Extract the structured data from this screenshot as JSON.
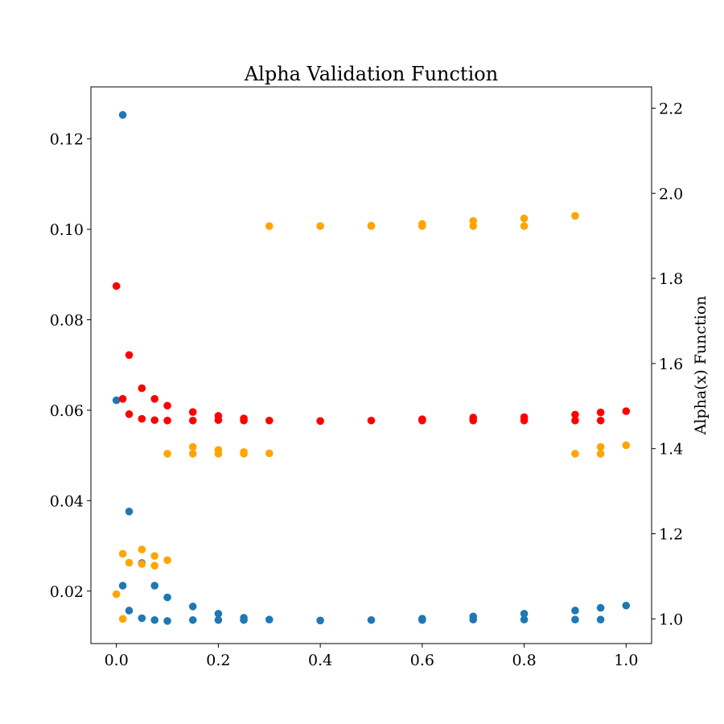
{
  "chart_data": {
    "type": "scatter",
    "title": "Alpha Validation Function",
    "xlabel": "",
    "ylabel_left": "",
    "ylabel_right": "Alpha(x) Function",
    "xlim": [
      -0.05,
      1.05
    ],
    "ylim_left": [
      0.0084,
      0.1315
    ],
    "ylim_right": [
      0.942,
      2.25
    ],
    "x_ticks": [
      0.0,
      0.2,
      0.4,
      0.6,
      0.8,
      1.0
    ],
    "x_tick_labels": [
      "0.0",
      "0.2",
      "0.4",
      "0.6",
      "0.8",
      "1.0"
    ],
    "y_left_ticks": [
      0.02,
      0.04,
      0.06,
      0.08,
      0.1,
      0.12
    ],
    "y_left_tick_labels": [
      "0.02",
      "0.04",
      "0.06",
      "0.08",
      "0.10",
      "0.12"
    ],
    "y_right_ticks": [
      1.0,
      1.2,
      1.4,
      1.6,
      1.8,
      2.0,
      2.2
    ],
    "y_right_tick_labels": [
      "1.0",
      "1.2",
      "1.4",
      "1.6",
      "1.8",
      "2.0",
      "2.2"
    ],
    "grid": false,
    "legend": "none",
    "series": [
      {
        "color": "#1f77b4",
        "axis": "left",
        "points": [
          [
            0.0,
            0.0622
          ],
          [
            0.0125,
            0.1253
          ],
          [
            0.0125,
            0.0212
          ],
          [
            0.025,
            0.0376
          ],
          [
            0.025,
            0.0157
          ],
          [
            0.05,
            0.0262
          ],
          [
            0.05,
            0.014
          ],
          [
            0.075,
            0.0212
          ],
          [
            0.075,
            0.0136
          ],
          [
            0.1,
            0.0186
          ],
          [
            0.1,
            0.0134
          ],
          [
            0.15,
            0.0166
          ],
          [
            0.15,
            0.0136
          ],
          [
            0.2,
            0.015
          ],
          [
            0.2,
            0.0136
          ],
          [
            0.25,
            0.0141
          ],
          [
            0.25,
            0.0136
          ],
          [
            0.3,
            0.0137
          ],
          [
            0.4,
            0.0135
          ],
          [
            0.5,
            0.0136
          ],
          [
            0.6,
            0.0139
          ],
          [
            0.6,
            0.0136
          ],
          [
            0.7,
            0.0144
          ],
          [
            0.7,
            0.0137
          ],
          [
            0.8,
            0.015
          ],
          [
            0.8,
            0.0137
          ],
          [
            0.9,
            0.0157
          ],
          [
            0.9,
            0.0137
          ],
          [
            0.95,
            0.0163
          ],
          [
            0.95,
            0.0137
          ],
          [
            1.0,
            0.0168
          ]
        ]
      },
      {
        "color": "#ffa500",
        "axis": "right",
        "points": [
          [
            0.0,
            1.058
          ],
          [
            0.0125,
            1.153
          ],
          [
            0.0125,
            1.0
          ],
          [
            0.025,
            1.132
          ],
          [
            0.05,
            1.163
          ],
          [
            0.05,
            1.129
          ],
          [
            0.075,
            1.148
          ],
          [
            0.075,
            1.125
          ],
          [
            0.1,
            1.138
          ],
          [
            0.1,
            1.388
          ],
          [
            0.15,
            1.404
          ],
          [
            0.15,
            1.388
          ],
          [
            0.2,
            1.397
          ],
          [
            0.2,
            1.388
          ],
          [
            0.25,
            1.392
          ],
          [
            0.25,
            1.388
          ],
          [
            0.3,
            1.923
          ],
          [
            0.3,
            1.389
          ],
          [
            0.4,
            1.923
          ],
          [
            0.5,
            1.924
          ],
          [
            0.5,
            1.923
          ],
          [
            0.6,
            1.928
          ],
          [
            0.6,
            1.923
          ],
          [
            0.7,
            1.935
          ],
          [
            0.7,
            1.923
          ],
          [
            0.8,
            1.941
          ],
          [
            0.8,
            1.923
          ],
          [
            0.9,
            1.947
          ],
          [
            0.9,
            1.388
          ],
          [
            0.95,
            1.404
          ],
          [
            0.95,
            1.388
          ],
          [
            1.0,
            1.408
          ]
        ]
      },
      {
        "color": "#ff0000",
        "axis": "right",
        "points": [
          [
            0.0,
            1.782
          ],
          [
            0.0125,
            1.517
          ],
          [
            0.025,
            1.62
          ],
          [
            0.025,
            1.481
          ],
          [
            0.05,
            1.542
          ],
          [
            0.05,
            1.47
          ],
          [
            0.075,
            1.517
          ],
          [
            0.075,
            1.467
          ],
          [
            0.1,
            1.501
          ],
          [
            0.1,
            1.466
          ],
          [
            0.15,
            1.486
          ],
          [
            0.15,
            1.466
          ],
          [
            0.2,
            1.477
          ],
          [
            0.2,
            1.467
          ],
          [
            0.25,
            1.471
          ],
          [
            0.25,
            1.466
          ],
          [
            0.3,
            1.466
          ],
          [
            0.4,
            1.465
          ],
          [
            0.5,
            1.466
          ],
          [
            0.6,
            1.469
          ],
          [
            0.6,
            1.466
          ],
          [
            0.7,
            1.473
          ],
          [
            0.7,
            1.466
          ],
          [
            0.8,
            1.474
          ],
          [
            0.8,
            1.466
          ],
          [
            0.9,
            1.48
          ],
          [
            0.9,
            1.466
          ],
          [
            0.95,
            1.485
          ],
          [
            0.95,
            1.466
          ],
          [
            1.0,
            1.488
          ]
        ]
      }
    ]
  }
}
